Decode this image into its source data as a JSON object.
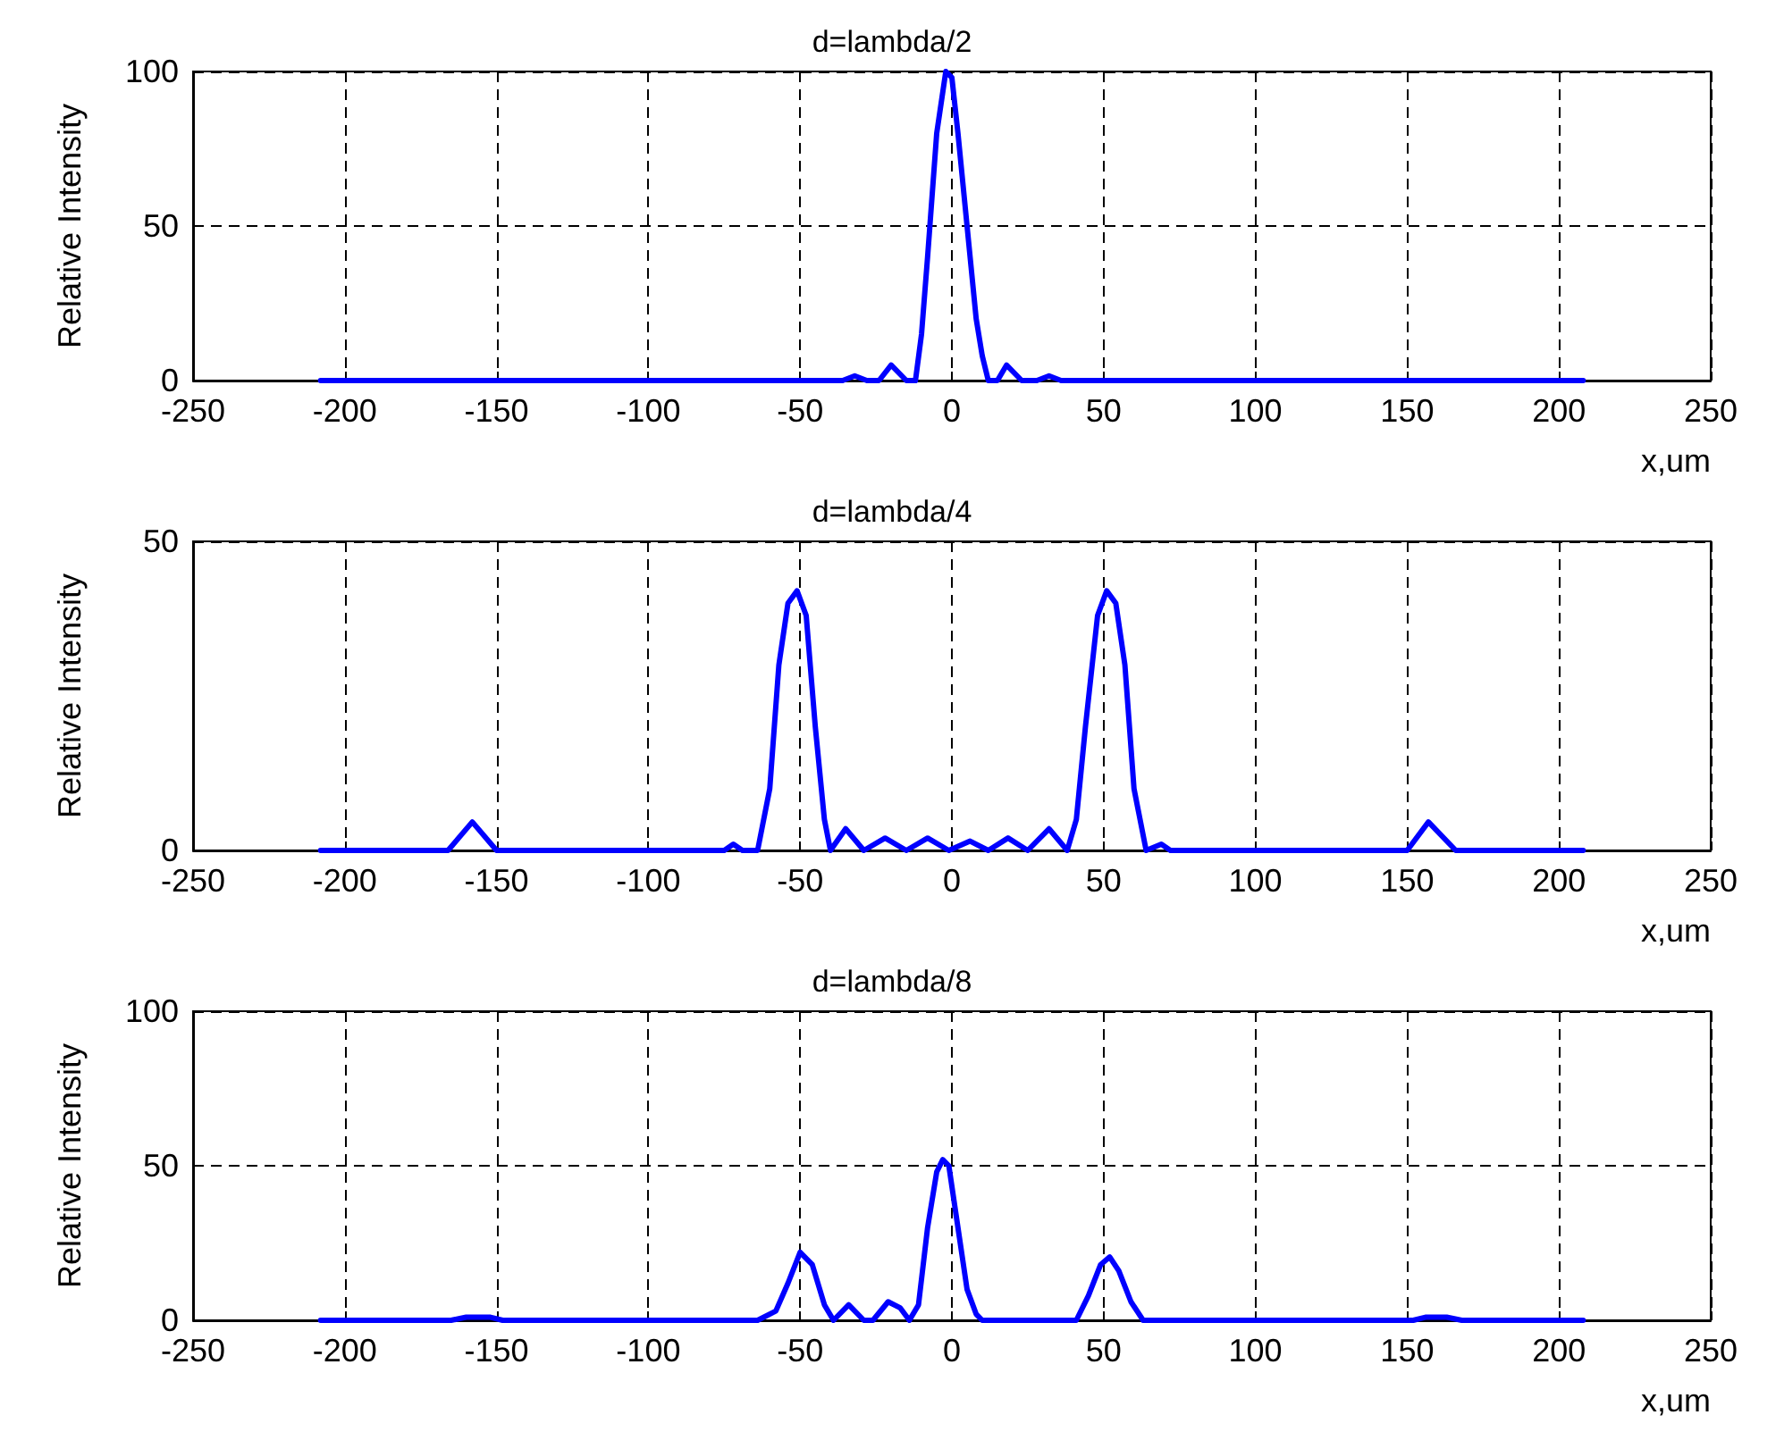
{
  "chart_data": [
    {
      "type": "line",
      "title": "d=lambda/2",
      "xlabel": "x,um",
      "ylabel": "Relative Intensity",
      "xlim": [
        -250,
        250
      ],
      "xticks": [
        -250,
        -200,
        -150,
        -100,
        -50,
        0,
        50,
        100,
        150,
        200,
        250
      ],
      "ylim": [
        0,
        100
      ],
      "yticks": [
        0,
        50,
        100
      ],
      "grid": true,
      "marker": "none",
      "line_style": "solid",
      "series": [
        {
          "color": "#0000ff",
          "x": [
            -208,
            -36,
            -32,
            -28,
            -24,
            -20,
            -15,
            -12,
            -10,
            -8,
            -5,
            -2,
            0,
            2,
            5,
            8,
            10,
            12,
            15,
            18,
            23,
            28,
            32,
            36,
            208
          ],
          "values": [
            0,
            0,
            1.5,
            0,
            0,
            5,
            0,
            0,
            15,
            40,
            80,
            100,
            98,
            80,
            50,
            20,
            8,
            0,
            0,
            5,
            0,
            0,
            1.5,
            0,
            0
          ]
        }
      ]
    },
    {
      "type": "line",
      "title": "d=lambda/4",
      "xlabel": "x,um",
      "ylabel": "Relative Intensity",
      "xlim": [
        -250,
        250
      ],
      "xticks": [
        -250,
        -200,
        -150,
        -100,
        -50,
        0,
        50,
        100,
        150,
        200,
        250
      ],
      "ylim": [
        0,
        50
      ],
      "yticks": [
        0,
        50
      ],
      "grid": true,
      "marker": "none",
      "line_style": "solid",
      "series": [
        {
          "color": "#0000ff",
          "x": [
            -208,
            -166,
            -158,
            -150,
            -75,
            -72,
            -69,
            -64,
            -60,
            -57,
            -54,
            -51,
            -48,
            -45,
            -42,
            -40,
            -35,
            -29,
            -22,
            -15,
            -8,
            -1,
            6,
            12,
            18.5,
            25,
            32,
            38,
            41,
            44,
            48,
            51,
            54,
            57,
            60,
            64,
            69,
            72,
            75,
            150,
            157,
            166,
            208
          ],
          "values": [
            0,
            0,
            4.6,
            0,
            0,
            1,
            0,
            0,
            10,
            30,
            40,
            42,
            38,
            20,
            5,
            0,
            3.5,
            0,
            2,
            0,
            2,
            0,
            1.5,
            0,
            2,
            0,
            3.5,
            0,
            5,
            20,
            38,
            42,
            40,
            30,
            10,
            0,
            1,
            0,
            0,
            0,
            4.6,
            0,
            0
          ]
        }
      ]
    },
    {
      "type": "line",
      "title": "d=lambda/8",
      "xlabel": "x,um",
      "ylabel": "Relative Intensity",
      "xlim": [
        -250,
        250
      ],
      "xticks": [
        -250,
        -200,
        -150,
        -100,
        -50,
        0,
        50,
        100,
        150,
        200,
        250
      ],
      "ylim": [
        0,
        100
      ],
      "yticks": [
        0,
        50,
        100
      ],
      "grid": true,
      "marker": "none",
      "line_style": "solid",
      "series": [
        {
          "color": "#0000ff",
          "x": [
            -208,
            -165,
            -160,
            -152,
            -148,
            -64,
            -58,
            -54,
            -50,
            -46,
            -42,
            -39,
            -34,
            -29,
            -26,
            -21,
            -17,
            -14,
            -11,
            -8,
            -5,
            -3,
            -1,
            2,
            5,
            8,
            10,
            41,
            45,
            49,
            52,
            55,
            59,
            63,
            152,
            156,
            163,
            168,
            208
          ],
          "values": [
            0,
            0,
            1,
            1,
            0,
            0,
            3,
            12,
            22,
            18,
            5,
            0,
            5,
            0,
            0,
            6,
            4,
            0,
            5,
            30,
            48,
            52,
            50,
            30,
            10,
            2,
            0,
            0,
            8,
            18,
            20.5,
            16,
            6,
            0,
            0,
            1,
            1,
            0,
            0
          ]
        }
      ]
    }
  ]
}
